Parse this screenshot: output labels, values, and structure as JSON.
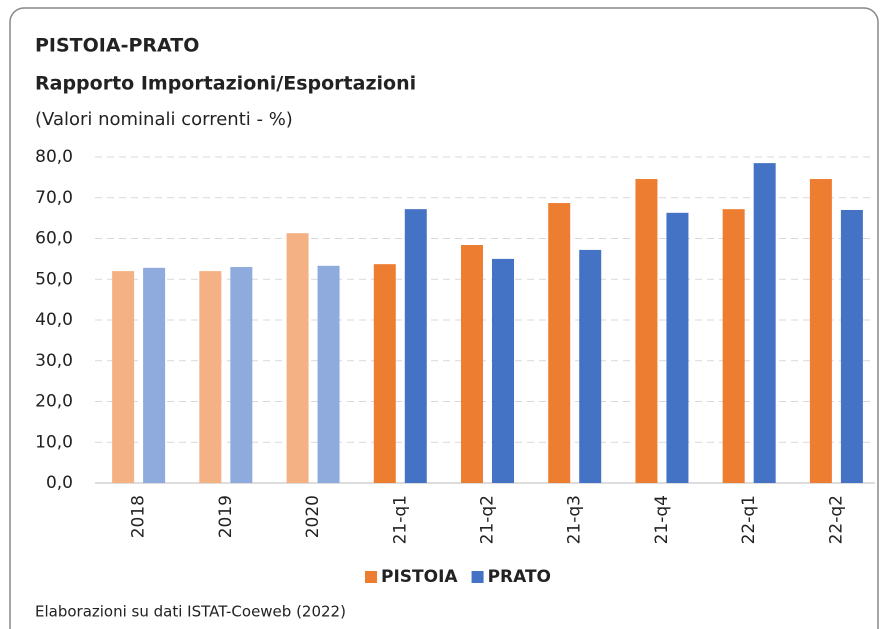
{
  "chart_data": {
    "type": "bar",
    "title": "PISTOIA-PRATO",
    "subtitle": "Rapporto Importazioni/Esportazioni",
    "units": "(Valori nominali correnti - %)",
    "source": "Elaborazioni su dati ISTAT-Coeweb (2022)",
    "categories": [
      "2018",
      "2019",
      "2020",
      "21-q1",
      "21-q2",
      "21-q3",
      "21-q4",
      "22-q1",
      "22-q2"
    ],
    "series": [
      {
        "name": "PISTOIA",
        "color": "#ed7d31",
        "colors": [
          "#f4b183",
          "#f4b183",
          "#f4b183",
          "#ed7d31",
          "#ed7d31",
          "#ed7d31",
          "#ed7d31",
          "#ed7d31",
          "#ed7d31"
        ],
        "values": [
          52.0,
          52.0,
          61.3,
          53.7,
          58.4,
          68.7,
          74.6,
          67.2,
          74.6
        ]
      },
      {
        "name": "PRATO",
        "color": "#4472c4",
        "colors": [
          "#8faadc",
          "#8faadc",
          "#8faadc",
          "#4472c4",
          "#4472c4",
          "#4472c4",
          "#4472c4",
          "#4472c4",
          "#4472c4"
        ],
        "values": [
          52.8,
          53.0,
          53.3,
          67.2,
          55.0,
          57.2,
          66.3,
          78.5,
          67.0
        ]
      }
    ],
    "ylim": [
      0,
      80
    ],
    "yticks": [
      {
        "value": 0,
        "label": "0,0"
      },
      {
        "value": 10,
        "label": "10,0"
      },
      {
        "value": 20,
        "label": "20,0"
      },
      {
        "value": 30,
        "label": "30,0"
      },
      {
        "value": 40,
        "label": "40,0"
      },
      {
        "value": 50,
        "label": "50,0"
      },
      {
        "value": 60,
        "label": "60,0"
      },
      {
        "value": 70,
        "label": "70,0"
      },
      {
        "value": 80,
        "label": "80,0"
      }
    ],
    "grid": true,
    "legend": "bottom"
  }
}
